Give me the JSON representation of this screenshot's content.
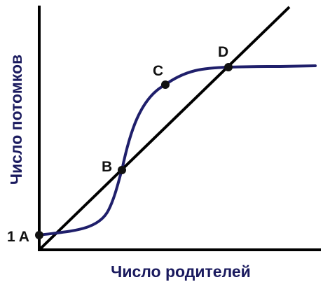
{
  "axes": {
    "xlabel": "Число родителей",
    "ylabel": "Число потомков"
  },
  "points": {
    "A": "1 A",
    "B": "B",
    "C": "C",
    "D": "D"
  },
  "colors": {
    "axis": "#000000",
    "curve": "#1f1f6b",
    "label_text": "#1a1a5e"
  }
}
